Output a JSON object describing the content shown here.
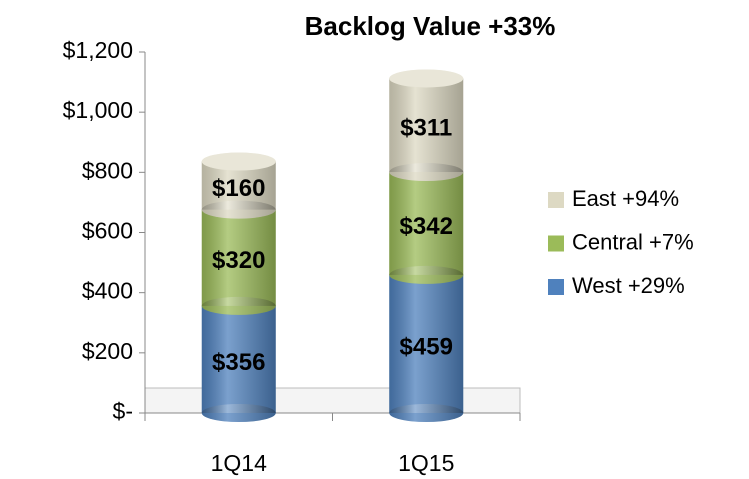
{
  "chart_data": {
    "type": "stacked-bar",
    "title": "Backlog Value +33%",
    "categories": [
      "1Q14",
      "1Q15"
    ],
    "series": [
      {
        "name": "West +29%",
        "color": "#4f81bd",
        "values": [
          356,
          459
        ],
        "value_labels": [
          "$356",
          "$459"
        ]
      },
      {
        "name": "Central +7%",
        "color": "#9bbb59",
        "values": [
          320,
          342
        ],
        "value_labels": [
          "$320",
          "$342"
        ]
      },
      {
        "name": "East +94%",
        "color": "#ddd9c3",
        "values": [
          160,
          311
        ],
        "value_labels": [
          "$160",
          "$311"
        ]
      }
    ],
    "ylim": [
      0,
      1200
    ],
    "yticks": [
      {
        "value": 0,
        "label": "$-"
      },
      {
        "value": 200,
        "label": "$200"
      },
      {
        "value": 400,
        "label": "$400"
      },
      {
        "value": 600,
        "label": "$600"
      },
      {
        "value": 800,
        "label": "$800"
      },
      {
        "value": 1000,
        "label": "$1,000"
      },
      {
        "value": 1200,
        "label": "$1,200"
      }
    ],
    "legend": "right"
  }
}
